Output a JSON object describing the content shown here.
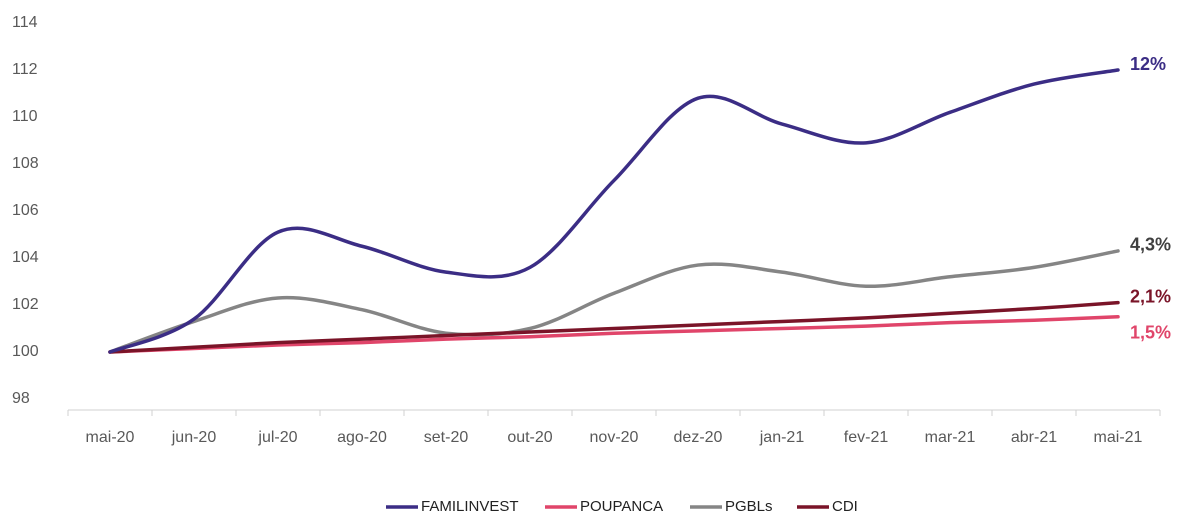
{
  "chart_data": {
    "type": "line",
    "categories": [
      "mai-20",
      "jun-20",
      "jul-20",
      "ago-20",
      "set-20",
      "out-20",
      "nov-20",
      "dez-20",
      "jan-21",
      "fev-21",
      "mar-21",
      "abr-21",
      "mai-21"
    ],
    "ylim": [
      98,
      114
    ],
    "yticks": [
      98,
      100,
      102,
      104,
      106,
      108,
      110,
      112,
      114
    ],
    "grid": false,
    "smooth": true,
    "legend": "bottom",
    "series": [
      {
        "name": "FAMILINVEST",
        "color": "#3b2d85",
        "end_label": "12%",
        "end_label_color": "#3b2d85",
        "values": [
          100,
          101.4,
          105.1,
          104.5,
          103.4,
          103.6,
          107.3,
          110.8,
          109.7,
          108.9,
          110.2,
          111.4,
          112
        ]
      },
      {
        "name": "POUPANCA",
        "color": "#e0456a",
        "end_label": "1,5%",
        "end_label_color": "#e0456a",
        "values": [
          100,
          100.15,
          100.3,
          100.4,
          100.55,
          100.65,
          100.8,
          100.9,
          101.0,
          101.1,
          101.25,
          101.35,
          101.5
        ]
      },
      {
        "name": "PGBLs",
        "color": "#858585",
        "end_label": "4,3%",
        "end_label_color": "#404040",
        "values": [
          100,
          101.3,
          102.3,
          101.8,
          100.8,
          101.0,
          102.5,
          103.7,
          103.4,
          102.8,
          103.2,
          103.6,
          104.3
        ]
      },
      {
        "name": "CDI",
        "color": "#7a1428",
        "end_label": "2,1%",
        "end_label_color": "#7a1428",
        "values": [
          100,
          100.2,
          100.4,
          100.55,
          100.7,
          100.85,
          101.0,
          101.15,
          101.3,
          101.45,
          101.65,
          101.85,
          102.1
        ]
      }
    ]
  }
}
